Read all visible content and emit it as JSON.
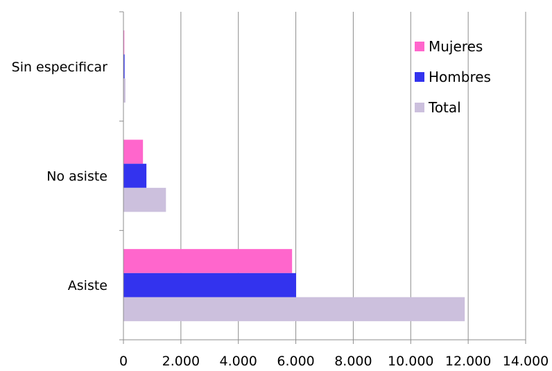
{
  "chart_data": {
    "type": "bar",
    "orientation": "horizontal",
    "title": "",
    "xlabel": "",
    "ylabel": "",
    "categories": [
      "Asiste",
      "No asiste",
      "Sin especificar"
    ],
    "series": [
      {
        "name": "Mujeres",
        "color": "#ff66cc",
        "values": [
          5870,
          680,
          30
        ]
      },
      {
        "name": "Hombres",
        "color": "#3333ee",
        "values": [
          6010,
          800,
          40
        ]
      },
      {
        "name": "Total",
        "color": "#ccc0dd",
        "values": [
          11880,
          1480,
          70
        ]
      }
    ],
    "xlim": [
      0,
      14000
    ],
    "xticks": [
      0,
      2000,
      4000,
      6000,
      8000,
      10000,
      12000,
      14000
    ],
    "xtick_labels": [
      "0",
      "2.000",
      "4.000",
      "6.000",
      "8.000",
      "10.000",
      "12.000",
      "14.000"
    ],
    "grid": "vertical",
    "legend_position": "top-right"
  }
}
